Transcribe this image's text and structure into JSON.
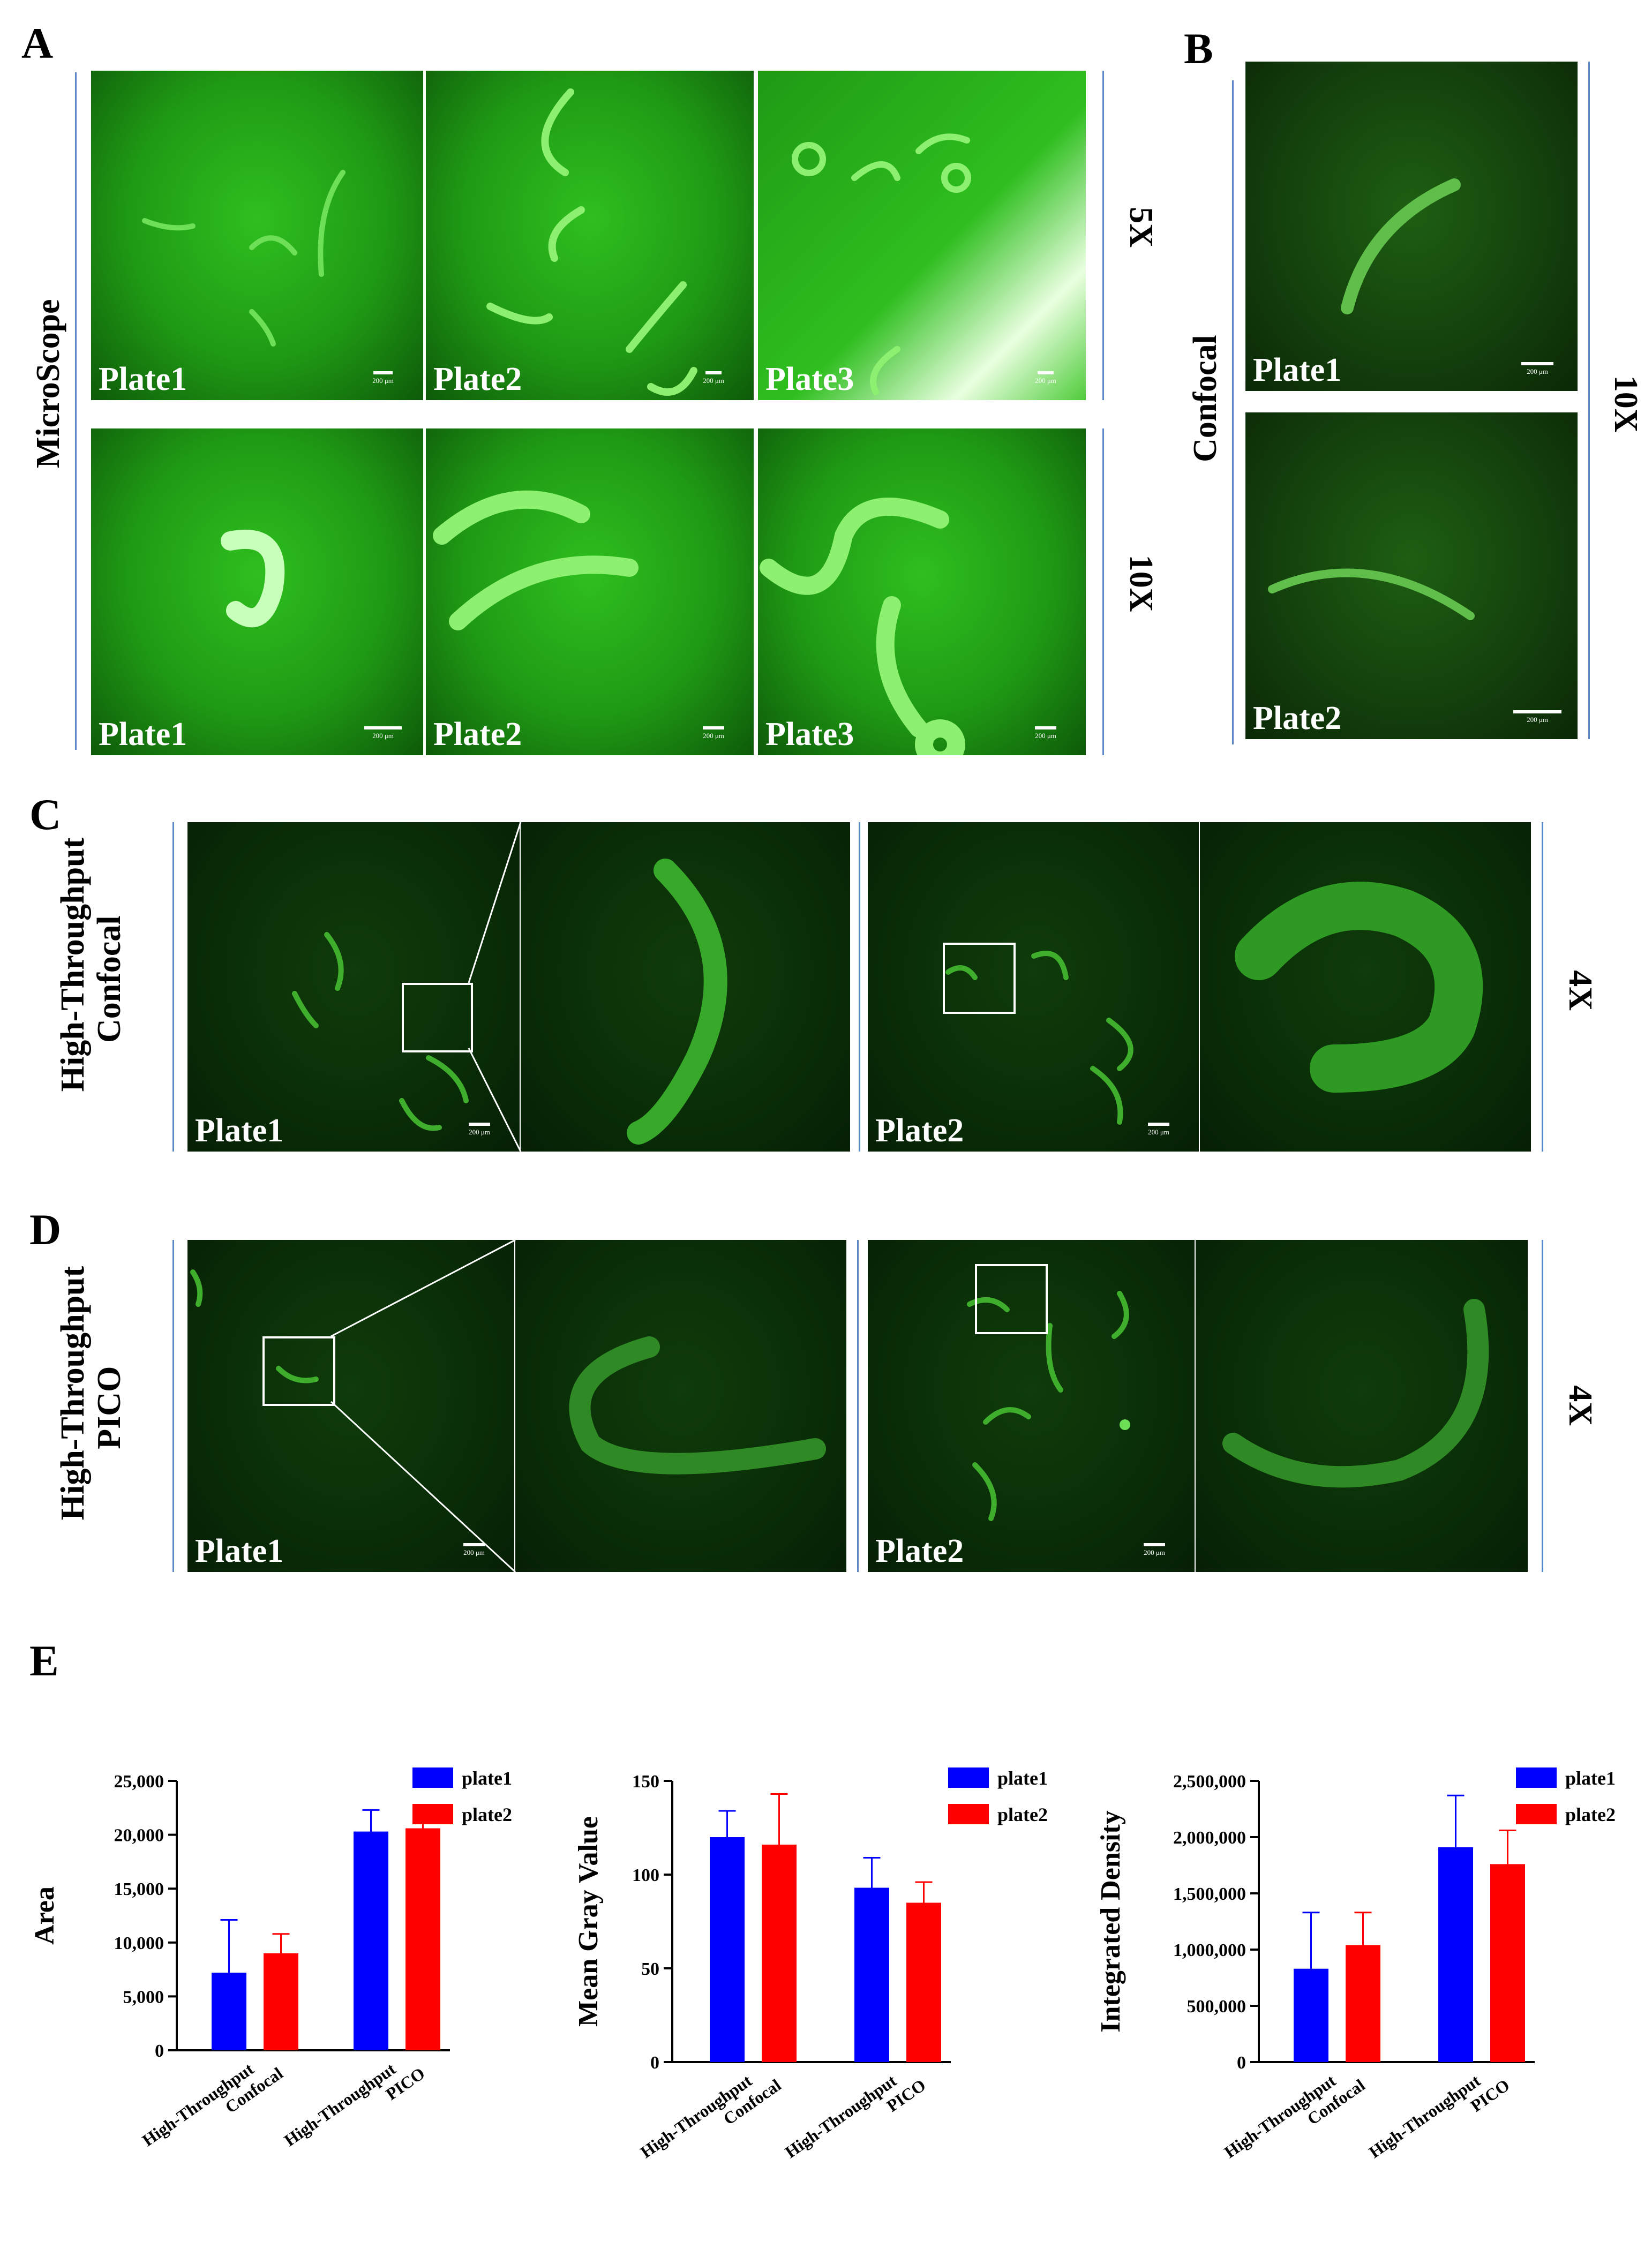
{
  "panels": {
    "A": {
      "letter": "A",
      "group_label": "MicroScope",
      "rows": [
        {
          "magnification": "5X",
          "plates": [
            "Plate1",
            "Plate2",
            "Plate3"
          ]
        },
        {
          "magnification": "10X",
          "plates": [
            "Plate1",
            "Plate2",
            "Plate3"
          ]
        }
      ],
      "scale_text": "200 μm"
    },
    "B": {
      "letter": "B",
      "group_label": "Confocal",
      "magnification": "10X",
      "plates": [
        "Plate1",
        "Plate2"
      ],
      "scale_text": "200 μm"
    },
    "C": {
      "letter": "C",
      "group_label_line1": "High-Throughput",
      "group_label_line2": "Confocal",
      "magnification": "4X",
      "plates": [
        "Plate1",
        "Plate2"
      ],
      "scale_text": "200 μm"
    },
    "D": {
      "letter": "D",
      "group_label_line1": "High-Throughput",
      "group_label_line2": "PICO",
      "magnification": "4X",
      "plates": [
        "Plate1",
        "Plate2"
      ],
      "scale_text": "200 μm"
    },
    "E": {
      "letter": "E"
    }
  },
  "chart_data": [
    {
      "type": "bar",
      "ylabel": "Area",
      "categories": [
        [
          "High-Throughput",
          "Confocal"
        ],
        [
          "High-Throughput",
          "PICO"
        ]
      ],
      "ylim": [
        0,
        25000
      ],
      "yticks": [
        "0",
        "5,000",
        "10,000",
        "15,000",
        "20,000",
        "25,000"
      ],
      "ytick_values": [
        0,
        5000,
        10000,
        15000,
        20000,
        25000
      ],
      "series": [
        {
          "name": "plate1",
          "color": "#0000ff",
          "values": [
            7200,
            20300
          ],
          "errors": [
            4900,
            2000
          ]
        },
        {
          "name": "plate2",
          "color": "#ff0000",
          "values": [
            9000,
            20600
          ],
          "errors": [
            1800,
            2000
          ]
        }
      ]
    },
    {
      "type": "bar",
      "ylabel": "Mean Gray Value",
      "categories": [
        [
          "High-Throughput",
          "Confocal"
        ],
        [
          "High-Throughput",
          "PICO"
        ]
      ],
      "ylim": [
        0,
        150
      ],
      "yticks": [
        "0",
        "50",
        "100",
        "150"
      ],
      "ytick_values": [
        0,
        50,
        100,
        150
      ],
      "series": [
        {
          "name": "plate1",
          "color": "#0000ff",
          "values": [
            120,
            93
          ],
          "errors": [
            14,
            16
          ]
        },
        {
          "name": "plate2",
          "color": "#ff0000",
          "values": [
            116,
            85
          ],
          "errors": [
            27,
            11
          ]
        }
      ]
    },
    {
      "type": "bar",
      "ylabel": "Integrated Density",
      "categories": [
        [
          "High-Throughput",
          "Confocal"
        ],
        [
          "High-Throughput",
          "PICO"
        ]
      ],
      "ylim": [
        0,
        2500000
      ],
      "yticks": [
        "0",
        "500,000",
        "1,000,000",
        "1,500,000",
        "2,000,000",
        "2,500,000"
      ],
      "ytick_values": [
        0,
        500000,
        1000000,
        1500000,
        2000000,
        2500000
      ],
      "series": [
        {
          "name": "plate1",
          "color": "#0000ff",
          "values": [
            830000,
            1910000
          ],
          "errors": [
            500000,
            460000
          ]
        },
        {
          "name": "plate2",
          "color": "#ff0000",
          "values": [
            1040000,
            1760000
          ],
          "errors": [
            290000,
            300000
          ]
        }
      ]
    }
  ]
}
